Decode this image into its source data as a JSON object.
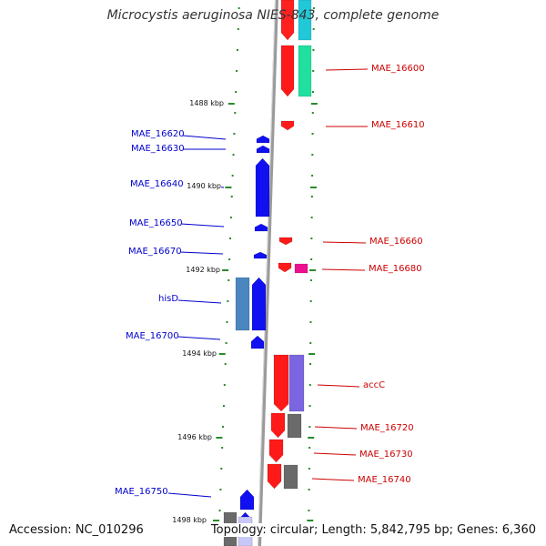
{
  "title": "Microcystis aeruginosa NIES-843, complete genome",
  "footer": {
    "accession": "Accession: NC_010296",
    "topology": "Topology: circular; Length: 5,842,795 bp; Genes: 6,360"
  },
  "colors": {
    "plus_strand_label": "#cc0000",
    "minus_strand_label": "#0000cc",
    "backbone": "#8a8a8a",
    "tick": "#2a8a2a"
  },
  "scale_labels": [
    "1488 kbp",
    "1490 kbp",
    "1492 kbp",
    "1494 kbp",
    "1496 kbp",
    "1498 kbp"
  ],
  "genes_right": [
    {
      "name": "MAE_16600"
    },
    {
      "name": "MAE_16610"
    },
    {
      "name": "MAE_16660"
    },
    {
      "name": "MAE_16680"
    },
    {
      "name": "accC"
    },
    {
      "name": "MAE_16720"
    },
    {
      "name": "MAE_16730"
    },
    {
      "name": "MAE_16740"
    }
  ],
  "genes_left": [
    {
      "name": "MAE_16620"
    },
    {
      "name": "MAE_16630"
    },
    {
      "name": "MAE_16640"
    },
    {
      "name": "MAE_16650"
    },
    {
      "name": "MAE_16670"
    },
    {
      "name": "hisD"
    },
    {
      "name": "MAE_16700"
    },
    {
      "name": "MAE_16750"
    }
  ]
}
